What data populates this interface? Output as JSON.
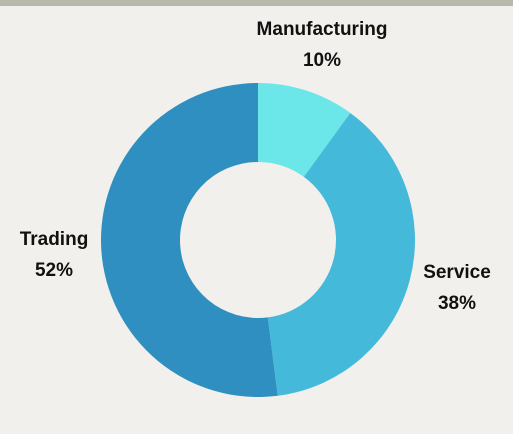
{
  "chart_data": {
    "type": "pie",
    "categories": [
      "Manufacturing",
      "Service",
      "Trading"
    ],
    "values": [
      10,
      38,
      52
    ],
    "value_labels": [
      "10%",
      "38%",
      "52%"
    ],
    "colors": [
      "#6be6e9",
      "#45b9d9",
      "#2e8fc0"
    ],
    "donut": true
  }
}
